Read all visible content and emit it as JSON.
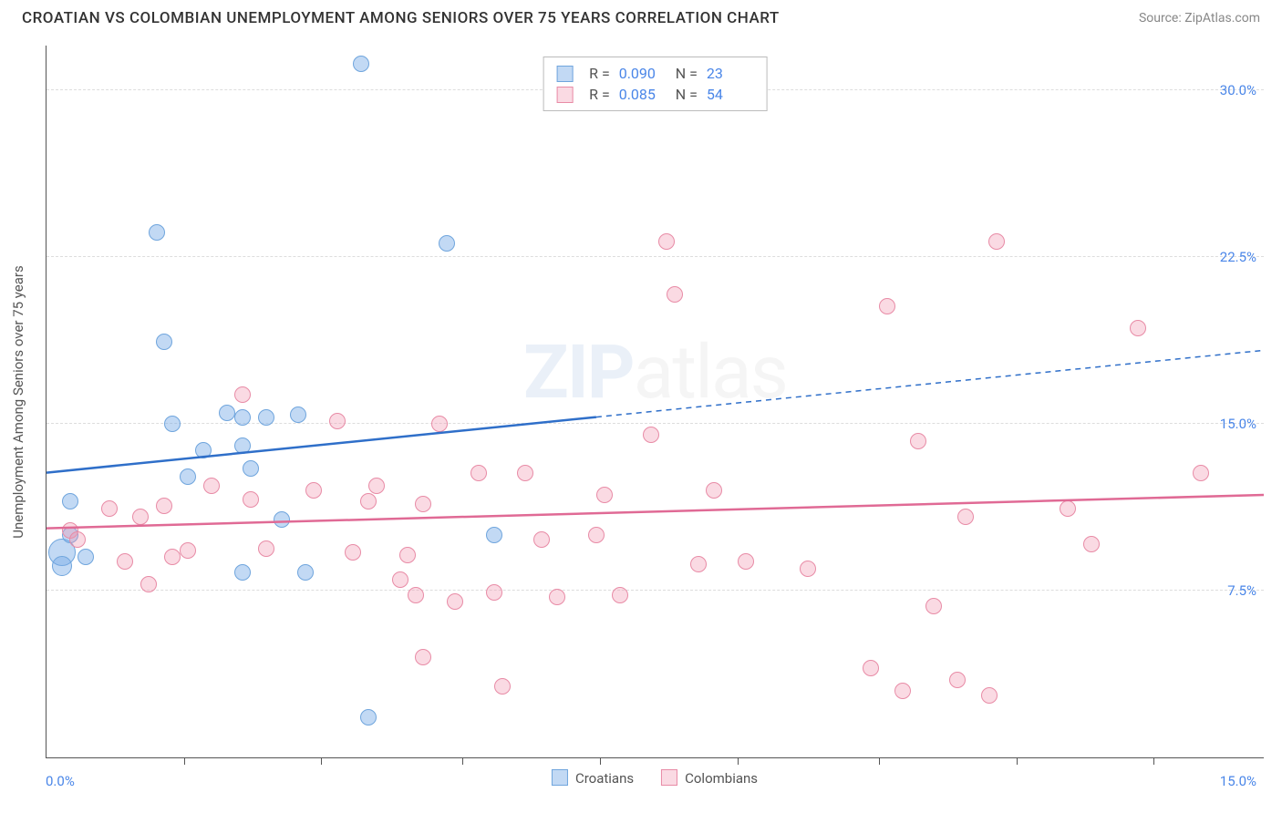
{
  "title": "CROATIAN VS COLOMBIAN UNEMPLOYMENT AMONG SENIORS OVER 75 YEARS CORRELATION CHART",
  "source": "Source: ZipAtlas.com",
  "watermark_bold": "ZIP",
  "watermark_rest": "atlas",
  "chart": {
    "type": "scatter",
    "y_axis_title": "Unemployment Among Seniors over 75 years",
    "x_range": [
      -0.5,
      15.0
    ],
    "y_range": [
      0.0,
      32.0
    ],
    "x_min_label": "0.0%",
    "x_max_label": "15.0%",
    "y_ticks": [
      {
        "v": 7.5,
        "label": "7.5%"
      },
      {
        "v": 15.0,
        "label": "15.0%"
      },
      {
        "v": 22.5,
        "label": "22.5%"
      },
      {
        "v": 30.0,
        "label": "30.0%"
      }
    ],
    "x_tick_positions": [
      1.25,
      3.0,
      4.8,
      6.55,
      8.3,
      10.1,
      11.85,
      13.6
    ],
    "grid_color": "#dddddd",
    "background_color": "#ffffff",
    "series": [
      {
        "name": "Croatians",
        "fill": "rgba(120,170,230,0.45)",
        "stroke": "#6fa5dd",
        "line_color": "#2f6fc9",
        "marker_radius": 9,
        "trend": {
          "x1": -0.5,
          "y1": 12.8,
          "x2": 6.5,
          "y2": 15.3,
          "x3": 15.0,
          "y3": 18.3
        },
        "points": [
          {
            "x": -0.3,
            "y": 9.2,
            "r": 15
          },
          {
            "x": -0.3,
            "y": 8.6,
            "r": 11
          },
          {
            "x": -0.2,
            "y": 10.0
          },
          {
            "x": -0.2,
            "y": 11.5
          },
          {
            "x": 0.0,
            "y": 9.0
          },
          {
            "x": 0.9,
            "y": 23.6
          },
          {
            "x": 1.0,
            "y": 18.7
          },
          {
            "x": 1.1,
            "y": 15.0
          },
          {
            "x": 1.3,
            "y": 12.6
          },
          {
            "x": 1.5,
            "y": 13.8
          },
          {
            "x": 1.8,
            "y": 15.5
          },
          {
            "x": 2.0,
            "y": 14.0
          },
          {
            "x": 2.0,
            "y": 15.3
          },
          {
            "x": 2.0,
            "y": 8.3
          },
          {
            "x": 2.1,
            "y": 13.0
          },
          {
            "x": 2.3,
            "y": 15.3
          },
          {
            "x": 2.5,
            "y": 10.7
          },
          {
            "x": 2.7,
            "y": 15.4
          },
          {
            "x": 2.8,
            "y": 8.3
          },
          {
            "x": 3.5,
            "y": 31.2
          },
          {
            "x": 3.6,
            "y": 1.8
          },
          {
            "x": 4.6,
            "y": 23.1
          },
          {
            "x": 5.2,
            "y": 10.0
          }
        ]
      },
      {
        "name": "Colombians",
        "fill": "rgba(240,150,175,0.35)",
        "stroke": "#e88ba6",
        "line_color": "#e06a95",
        "marker_radius": 9,
        "trend": {
          "x1": -0.5,
          "y1": 10.3,
          "x2": 15.0,
          "y2": 11.8
        },
        "points": [
          {
            "x": -0.2,
            "y": 10.2
          },
          {
            "x": -0.1,
            "y": 9.8
          },
          {
            "x": 0.3,
            "y": 11.2
          },
          {
            "x": 0.5,
            "y": 8.8
          },
          {
            "x": 0.7,
            "y": 10.8
          },
          {
            "x": 0.8,
            "y": 7.8
          },
          {
            "x": 1.0,
            "y": 11.3
          },
          {
            "x": 1.1,
            "y": 9.0
          },
          {
            "x": 1.3,
            "y": 9.3
          },
          {
            "x": 1.6,
            "y": 12.2
          },
          {
            "x": 2.0,
            "y": 16.3
          },
          {
            "x": 2.1,
            "y": 11.6
          },
          {
            "x": 2.3,
            "y": 9.4
          },
          {
            "x": 2.9,
            "y": 12.0
          },
          {
            "x": 3.2,
            "y": 15.1
          },
          {
            "x": 3.4,
            "y": 9.2
          },
          {
            "x": 3.6,
            "y": 11.5
          },
          {
            "x": 3.7,
            "y": 12.2
          },
          {
            "x": 4.0,
            "y": 8.0
          },
          {
            "x": 4.1,
            "y": 9.1
          },
          {
            "x": 4.2,
            "y": 7.3
          },
          {
            "x": 4.3,
            "y": 11.4
          },
          {
            "x": 4.3,
            "y": 4.5
          },
          {
            "x": 4.5,
            "y": 15.0
          },
          {
            "x": 4.7,
            "y": 7.0
          },
          {
            "x": 5.0,
            "y": 12.8
          },
          {
            "x": 5.2,
            "y": 7.4
          },
          {
            "x": 5.3,
            "y": 3.2
          },
          {
            "x": 5.6,
            "y": 12.8
          },
          {
            "x": 5.8,
            "y": 9.8
          },
          {
            "x": 6.0,
            "y": 7.2
          },
          {
            "x": 6.5,
            "y": 10.0
          },
          {
            "x": 6.6,
            "y": 11.8
          },
          {
            "x": 6.8,
            "y": 7.3
          },
          {
            "x": 7.2,
            "y": 14.5
          },
          {
            "x": 7.4,
            "y": 23.2
          },
          {
            "x": 7.5,
            "y": 20.8
          },
          {
            "x": 7.8,
            "y": 8.7
          },
          {
            "x": 8.0,
            "y": 12.0
          },
          {
            "x": 8.4,
            "y": 8.8
          },
          {
            "x": 9.2,
            "y": 8.5
          },
          {
            "x": 10.0,
            "y": 4.0
          },
          {
            "x": 10.2,
            "y": 20.3
          },
          {
            "x": 10.4,
            "y": 3.0
          },
          {
            "x": 10.6,
            "y": 14.2
          },
          {
            "x": 10.8,
            "y": 6.8
          },
          {
            "x": 11.1,
            "y": 3.5
          },
          {
            "x": 11.2,
            "y": 10.8
          },
          {
            "x": 11.5,
            "y": 2.8
          },
          {
            "x": 11.6,
            "y": 23.2
          },
          {
            "x": 12.5,
            "y": 11.2
          },
          {
            "x": 12.8,
            "y": 9.6
          },
          {
            "x": 13.4,
            "y": 19.3
          },
          {
            "x": 14.2,
            "y": 12.8
          }
        ]
      }
    ],
    "top_legend": [
      {
        "series_index": 0,
        "r_label": "R =",
        "r_value": "0.090",
        "n_label": "N =",
        "n_value": "23"
      },
      {
        "series_index": 1,
        "r_label": "R =",
        "r_value": "0.085",
        "n_label": "N =",
        "n_value": "54"
      }
    ]
  }
}
